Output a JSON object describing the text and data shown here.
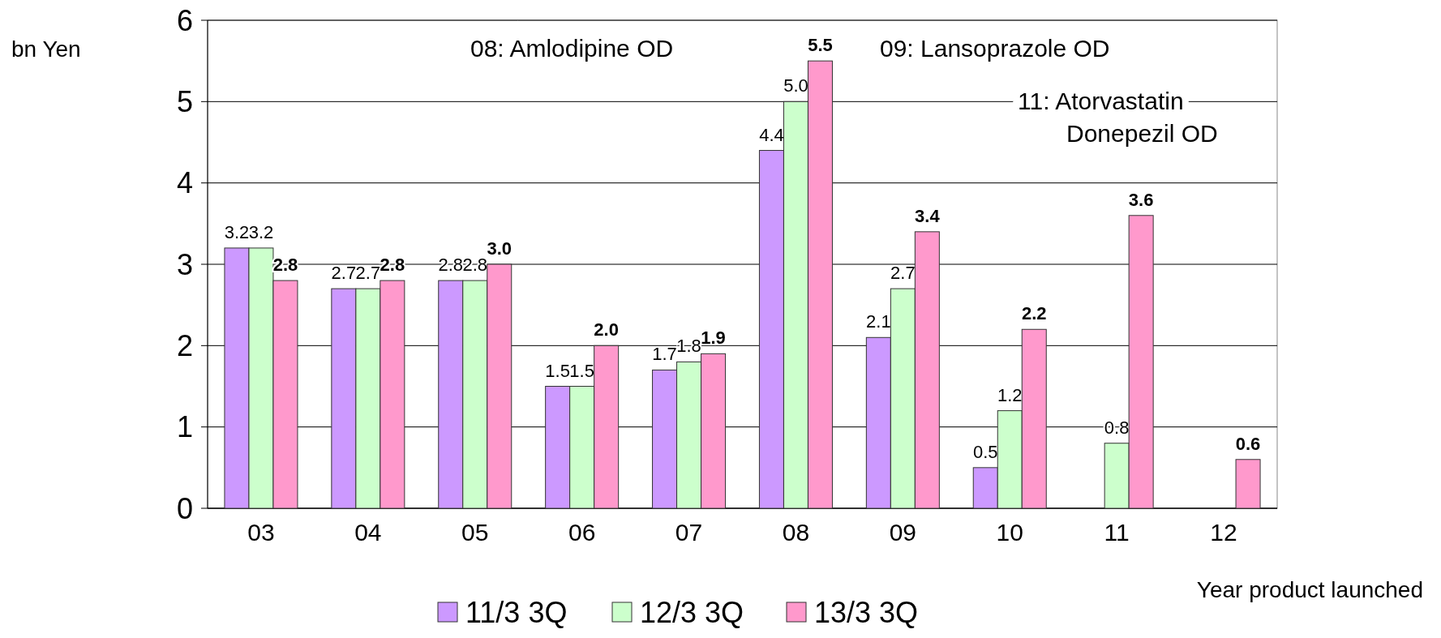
{
  "chart_data": {
    "type": "bar",
    "xlabel": "Year product launched",
    "ylabel": "bn Yen",
    "categories": [
      "03",
      "04",
      "05",
      "06",
      "07",
      "08",
      "09",
      "10",
      "11",
      "12"
    ],
    "series": [
      {
        "name": "11/3 3Q",
        "color": "#cc99ff",
        "values": [
          3.2,
          2.7,
          2.8,
          1.5,
          1.7,
          4.4,
          2.1,
          0.5,
          null,
          null
        ],
        "value_labels": [
          "3.2",
          "2.7",
          "2.8",
          "1.5",
          "1.7",
          "4.4",
          "2.1",
          "0.5",
          null,
          null
        ]
      },
      {
        "name": "12/3 3Q",
        "color": "#ccffcc",
        "values": [
          3.2,
          2.7,
          2.8,
          1.5,
          1.8,
          5.0,
          2.7,
          1.2,
          0.8,
          null
        ],
        "value_labels": [
          "3.2",
          "2.7",
          "2.8",
          "1.5",
          "1.8",
          "5.0",
          "2.7",
          "1.2",
          "0.8",
          null
        ]
      },
      {
        "name": "13/3 3Q",
        "color": "#ff99cc",
        "values": [
          2.8,
          2.8,
          3.0,
          2.0,
          1.9,
          5.5,
          3.4,
          2.2,
          3.6,
          0.6
        ],
        "value_labels": [
          "2.8",
          "2.8",
          "3.0",
          "2.0",
          "1.9",
          "5.5",
          "3.4",
          "2.2",
          "3.6",
          "0.6"
        ]
      }
    ],
    "ylim": [
      0,
      6
    ],
    "yticks": [
      0,
      1,
      2,
      3,
      4,
      5,
      6
    ],
    "grid": "y",
    "legend": "bottom",
    "annotations": [
      "08: Amlodipine OD",
      "09: Lansoprazole OD",
      "11: Atorvastatin\nDonepezil OD"
    ]
  }
}
